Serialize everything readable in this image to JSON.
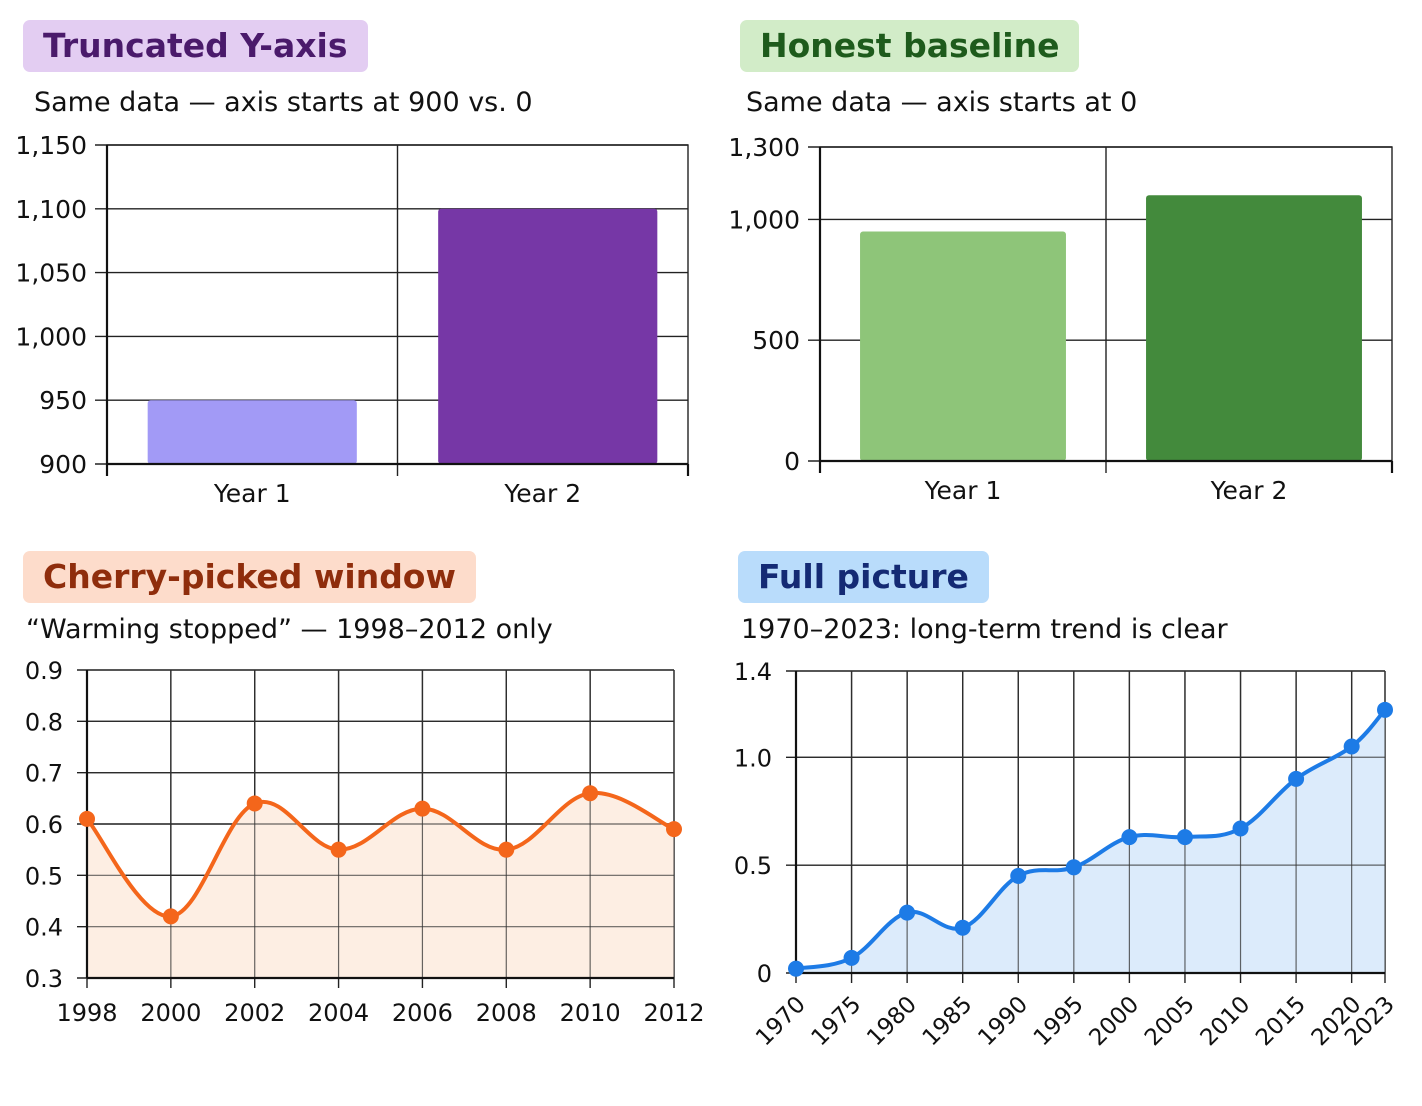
{
  "colors": {
    "purple_badge_bg": "#e3cdf2",
    "purple_badge_fg": "#4a1a6b",
    "green_badge_bg": "#d2ecc8",
    "green_badge_fg": "#1e5b1c",
    "orange_badge_bg": "#fddccb",
    "orange_badge_fg": "#8f2d0c",
    "blue_badge_bg": "#b9dcfb",
    "blue_badge_fg": "#142a74",
    "bar_light_purple": "#a29af6",
    "bar_dark_purple": "#7637a6",
    "bar_light_green": "#8ec579",
    "bar_dark_green": "#438a3c",
    "line_orange": "#f4661b",
    "fill_orange": "#fdeee3",
    "line_blue": "#1d7be6",
    "fill_blue": "#dcebfb"
  },
  "panels": {
    "truncated": {
      "badge": "Truncated Y-axis",
      "subtitle": "Same data — axis starts at 900 vs. 0"
    },
    "honest": {
      "badge": "Honest baseline",
      "subtitle": "Same data — axis starts at 0"
    },
    "cherry": {
      "badge": "Cherry-picked window",
      "subtitle": "“Warming stopped” — 1998–2012 only"
    },
    "full": {
      "badge": "Full picture",
      "subtitle": "1970–2023: long-term trend is clear"
    }
  },
  "chart_data": [
    {
      "type": "bar",
      "categories": [
        "Year 1",
        "Year 2"
      ],
      "values": [
        950,
        1100
      ],
      "ylim": [
        900,
        1150
      ],
      "yticks": [
        900,
        950,
        1000,
        1050,
        1100,
        1150
      ],
      "ytick_labels": [
        "900",
        "950",
        "1,000",
        "1,050",
        "1,100",
        "1,150"
      ],
      "bar_colors": [
        "#a29af6",
        "#7637a6"
      ],
      "grid": true
    },
    {
      "type": "bar",
      "categories": [
        "Year 1",
        "Year 2"
      ],
      "values": [
        950,
        1100
      ],
      "ylim": [
        0,
        1300
      ],
      "yticks": [
        0,
        500,
        1000,
        1300
      ],
      "ytick_labels": [
        "0",
        "500",
        "1,000",
        "1,300"
      ],
      "bar_colors": [
        "#8ec579",
        "#438a3c"
      ],
      "grid": true
    },
    {
      "type": "line",
      "x": [
        1998,
        2000,
        2002,
        2004,
        2006,
        2008,
        2010,
        2012
      ],
      "values": [
        0.61,
        0.42,
        0.64,
        0.55,
        0.63,
        0.55,
        0.66,
        0.59
      ],
      "ylim": [
        0.3,
        0.9
      ],
      "yticks": [
        0.3,
        0.4,
        0.5,
        0.6,
        0.7,
        0.8,
        0.9
      ],
      "ytick_labels": [
        "0.3",
        "0.4",
        "0.5",
        "0.6",
        "0.7",
        "0.8",
        "0.9"
      ],
      "xtick_labels": [
        "1998",
        "2000",
        "2002",
        "2004",
        "2006",
        "2008",
        "2010",
        "2012"
      ],
      "color": "#f4661b",
      "fill": "#fdeee3",
      "grid": true
    },
    {
      "type": "line",
      "x": [
        1970,
        1975,
        1980,
        1985,
        1990,
        1995,
        2000,
        2005,
        2010,
        2015,
        2020,
        2023
      ],
      "values": [
        0.02,
        0.07,
        0.28,
        0.21,
        0.45,
        0.49,
        0.63,
        0.63,
        0.67,
        0.9,
        1.05,
        1.22
      ],
      "ylim": [
        0,
        1.4
      ],
      "yticks": [
        0,
        0.5,
        1.0,
        1.4
      ],
      "ytick_labels": [
        "0",
        "0.5",
        "1.0",
        "1.4"
      ],
      "xtick_labels": [
        "1970",
        "1975",
        "1980",
        "1985",
        "1990",
        "1995",
        "2000",
        "2005",
        "2010",
        "2015",
        "2020",
        "2023"
      ],
      "color": "#1d7be6",
      "fill": "#dcebfb",
      "grid": true
    }
  ]
}
